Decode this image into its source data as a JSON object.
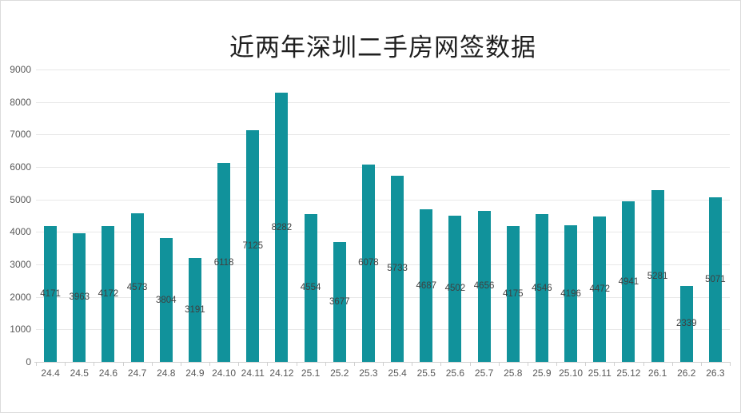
{
  "page": {
    "background": "#ffffff",
    "border_color": "#dcdcdc"
  },
  "chart_data": {
    "type": "bar",
    "title": "近两年深圳二手房网签数据",
    "categories": [
      "24.4",
      "24.5",
      "24.6",
      "24.7",
      "24.8",
      "24.9",
      "24.10",
      "24.11",
      "24.12",
      "25.1",
      "25.2",
      "25.3",
      "25.4",
      "25.5",
      "25.6",
      "25.7",
      "25.8",
      "25.9",
      "25.10",
      "25.11",
      "25.12",
      "26.1",
      "26.2",
      "26.3"
    ],
    "values": [
      4171,
      3963,
      4172,
      4573,
      3804,
      3191,
      6118,
      7125,
      8282,
      4554,
      3677,
      6078,
      5733,
      4687,
      4502,
      4656,
      4175,
      4546,
      4196,
      4472,
      4941,
      5281,
      2339,
      5071
    ],
    "xlabel": "",
    "ylabel": "",
    "ylim": [
      0,
      9000
    ],
    "yticks": [
      0,
      1000,
      2000,
      3000,
      4000,
      5000,
      6000,
      7000,
      8000,
      9000
    ],
    "grid": true,
    "legend_position": "none",
    "data_label_position": "center",
    "colors": {
      "bar": "#11929B",
      "gridline": "#e8e8e8",
      "axis_line": "#d0d0d0",
      "tick_label": "#595959",
      "data_label": "#3f3f3f",
      "title": "#1f1f1f"
    }
  }
}
